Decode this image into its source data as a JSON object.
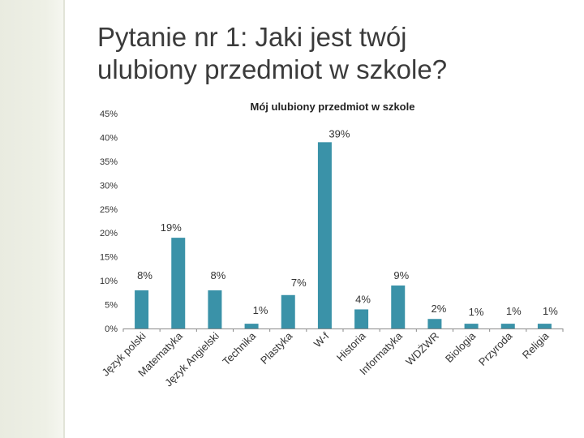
{
  "slide": {
    "title_line1": "Pytanie nr 1: Jaki jest twój",
    "title_line2": "ulubiony przedmiot w szkole?"
  },
  "chart_data": {
    "type": "bar",
    "title": "Mój ulubiony przedmiot w szkole",
    "xlabel": "",
    "ylabel": "",
    "ylim": [
      0,
      0.45
    ],
    "yticks": [
      "0%",
      "5%",
      "10%",
      "15%",
      "20%",
      "25%",
      "30%",
      "35%",
      "40%",
      "45%"
    ],
    "grid": false,
    "legend": "none",
    "bar_color": "#3a92a8",
    "categories": [
      "Język polski",
      "Matematyka",
      "Język Angielski",
      "Technika",
      "Plastyka",
      "W-f",
      "Historia",
      "Informatyka",
      "WDŻWR",
      "Biologia",
      "Przyroda",
      "Religia"
    ],
    "values": [
      0.08,
      0.19,
      0.08,
      0.01,
      0.07,
      0.39,
      0.04,
      0.09,
      0.02,
      0.01,
      0.01,
      0.01
    ],
    "data_labels": [
      "8%",
      "19%",
      "8%",
      "1%",
      "7%",
      "39%",
      "4%",
      "9%",
      "2%",
      "1%",
      "1%",
      "1%"
    ]
  }
}
